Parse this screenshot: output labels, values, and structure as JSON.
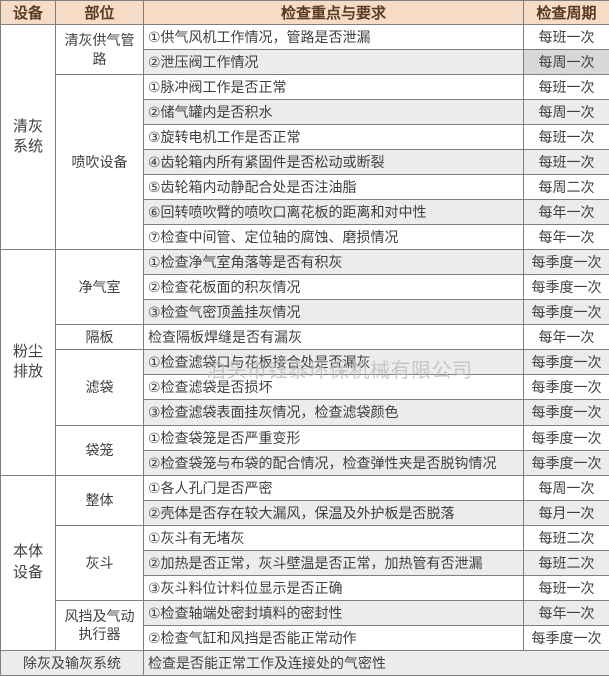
{
  "colors": {
    "header_bg": "#f6dcc6",
    "header_text": "#5c3a24",
    "border": "#7f7f7f",
    "body_text": "#3f3f3f",
    "stripe_row": "#ececec",
    "highlight_cell": "#d8d8d8",
    "watermark": "#bdbdbd"
  },
  "watermark": {
    "text": "泊头市钰泰环保机械有限公司"
  },
  "table": {
    "headers": [
      "设备",
      "部位",
      "检查重点与要求",
      "检查周期"
    ],
    "groups": [
      {
        "device": "清灰系统",
        "parts": [
          {
            "name": "清灰供气管路",
            "items": [
              {
                "text": "①供气风机工作情况，管路是否泄漏",
                "period": "每班一次"
              },
              {
                "text": "②泄压阀工作情况",
                "period": "每周一次",
                "highlight": true
              }
            ]
          },
          {
            "name": "喷吹设备",
            "items": [
              {
                "text": "①脉冲阀工作是否正常",
                "period": "每班一次"
              },
              {
                "text": "②储气罐内是否积水",
                "period": "每周一次"
              },
              {
                "text": "③旋转电机工作是否正常",
                "period": "每班一次"
              },
              {
                "text": "④齿轮箱内所有紧固件是否松动或断裂",
                "period": "每班一次"
              },
              {
                "text": "⑤齿轮箱内动静配合处是否注油脂",
                "period": "每周二次"
              },
              {
                "text": "⑥回转喷吹臂的喷吹口离花板的距离和对中性",
                "period": "每年一次"
              },
              {
                "text": "⑦检查中间管、定位轴的腐蚀、磨损情况",
                "period": "每年一次"
              }
            ]
          }
        ]
      },
      {
        "device": "粉尘排放",
        "parts": [
          {
            "name": "净气室",
            "items": [
              {
                "text": "①检查净气室角落等是否有积灰",
                "period": "每季度一次"
              },
              {
                "text": "②检查花板面的积灰情况",
                "period": "每季度一次"
              },
              {
                "text": "③检查气密顶盖挂灰情况",
                "period": "每季度一次"
              }
            ]
          },
          {
            "name": "隔板",
            "items": [
              {
                "text": "检查隔板焊缝是否有漏灰",
                "period": "每年一次"
              }
            ]
          },
          {
            "name": "滤袋",
            "items": [
              {
                "text": "①检查滤袋口与花板接合处是否漏灰",
                "period": "每季度一次"
              },
              {
                "text": "②检查滤袋是否损坏",
                "period": "每季度一次"
              },
              {
                "text": "③检查滤袋表面挂灰情况，检查滤袋颜色",
                "period": "每季度一次"
              }
            ]
          },
          {
            "name": "袋笼",
            "items": [
              {
                "text": "①检查袋笼是否严重变形",
                "period": "每季度一次"
              },
              {
                "text": "②检查袋笼与布袋的配合情况，检查弹性夹是否脱钩情况",
                "period": "每季度一次"
              }
            ]
          }
        ]
      },
      {
        "device": "本体设备",
        "parts": [
          {
            "name": "整体",
            "items": [
              {
                "text": "①各人孔门是否严密",
                "period": "每周一次"
              },
              {
                "text": "②壳体是否存在较大漏风，保温及外护板是否脱落",
                "period": "每月一次"
              }
            ]
          },
          {
            "name": "灰斗",
            "items": [
              {
                "text": "①灰斗有无堵灰",
                "period": "每班二次"
              },
              {
                "text": "②加热是否正常，灰斗壁温是否正常，加热管有否泄漏",
                "period": "每班二次"
              },
              {
                "text": "③灰斗料位计料位显示是否正确",
                "period": "每班一次"
              }
            ]
          },
          {
            "name": "风挡及气动执行器",
            "items": [
              {
                "text": "①检查轴端处密封填料的密封性",
                "period": "每年一次"
              },
              {
                "text": "②检查气缸和风挡是否能正常动作",
                "period": "每季度一次"
              }
            ]
          }
        ]
      }
    ],
    "footer": {
      "device": "除灰及输灰系统",
      "text": "检查是否能正常工作及连接处的气密性"
    }
  }
}
